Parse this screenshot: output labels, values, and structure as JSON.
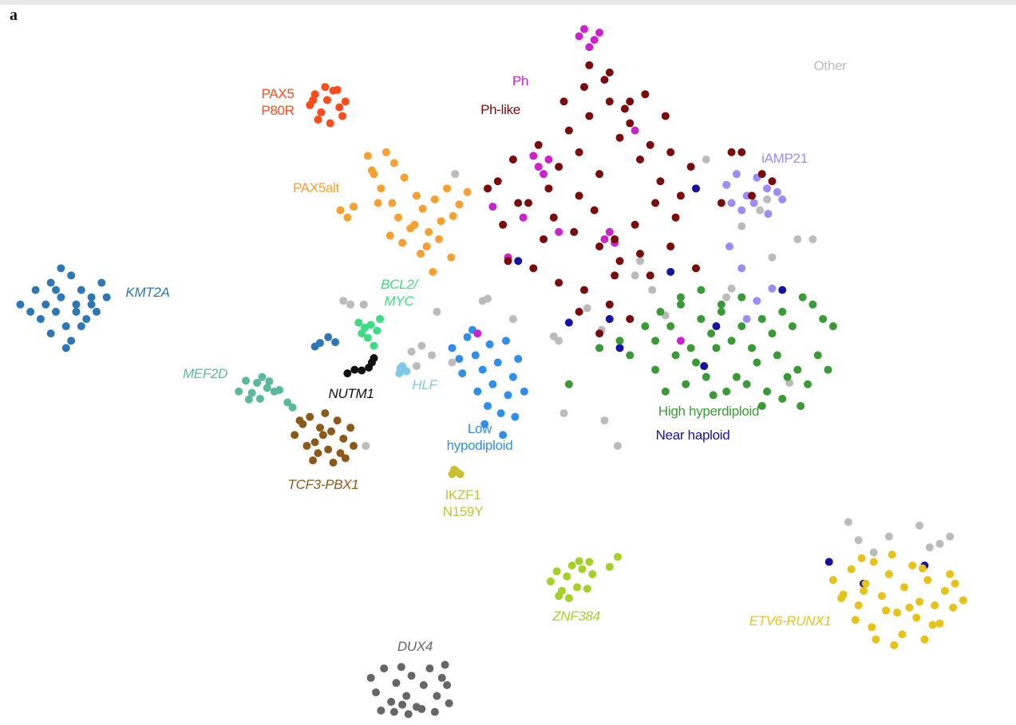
{
  "chart_data": {
    "type": "scatter",
    "panel_label": "a",
    "xlim": [
      0,
      100
    ],
    "ylim": [
      0,
      100
    ],
    "series": [
      {
        "name": "KMT2A",
        "color": "#2f77b4",
        "x": [
          2,
          3.5,
          4,
          5,
          5.5,
          6,
          6.5,
          7,
          7.5,
          8,
          8.5,
          9,
          9.5,
          10,
          3,
          4.5,
          5,
          6,
          7,
          8,
          9,
          6.5,
          5.5,
          7.5,
          10.5,
          31.5,
          32.3,
          31,
          33
        ],
        "y": [
          58,
          60,
          56,
          61,
          57,
          59,
          55,
          62,
          58,
          60,
          56,
          59,
          57,
          61,
          57,
          58,
          54,
          63,
          53,
          55,
          58,
          52,
          60,
          57,
          59,
          52.7,
          53.5,
          52.2,
          52.8
        ]
      },
      {
        "name": "MEF2D",
        "color": "#5bb89a",
        "x": [
          23.5,
          24.2,
          24.8,
          25.3,
          25.8,
          26.3,
          27,
          24.5,
          25.6,
          26.5,
          27.5,
          28.3,
          28.8
        ],
        "y": [
          46,
          47.5,
          45.8,
          47.2,
          48,
          46.5,
          46,
          44.9,
          45,
          47.4,
          46.2,
          44.5,
          43.8
        ]
      },
      {
        "name": "TCF3-PBX1",
        "color": "#8b5a1a",
        "x": [
          29,
          29.8,
          30.5,
          31,
          31.5,
          32,
          32.6,
          33.2,
          33.8,
          34.5,
          30.2,
          31.3,
          32.3,
          33.5,
          34.8,
          29.5,
          30.8,
          32.8,
          34,
          31.8
        ],
        "y": [
          40,
          41.5,
          42.5,
          39,
          41,
          43,
          40.5,
          42,
          39.5,
          41,
          38.5,
          37.5,
          38,
          37.5,
          38.5,
          42,
          36.5,
          36.2,
          36.8,
          40
        ]
      },
      {
        "name": "DUX4",
        "color": "#666666",
        "x": [
          36.5,
          37,
          37.8,
          38.5,
          39,
          39.5,
          40,
          40.5,
          41,
          41.7,
          42.3,
          43,
          43.5,
          44.2,
          37.5,
          38.8,
          40.2,
          41.5,
          42.8,
          44,
          39.6,
          43.8
        ],
        "y": [
          6.5,
          4.5,
          7.8,
          3.2,
          5.8,
          8,
          4,
          6.8,
          2.5,
          5.5,
          7.8,
          4,
          6.5,
          3,
          2,
          1.8,
          1.5,
          2.2,
          1.8,
          5.5,
          2.8,
          8.3
        ]
      },
      {
        "name": "ZNF384",
        "color": "#a3d12a",
        "x": [
          54.2,
          54.8,
          55.3,
          55.8,
          56.3,
          56.8,
          57.3,
          57.8,
          58.3,
          55,
          56,
          57,
          58,
          60,
          60.8
        ],
        "y": [
          19.8,
          21.2,
          18.5,
          20.5,
          22,
          19,
          21.5,
          18.8,
          20.8,
          17.8,
          17.5,
          22.6,
          22.5,
          21.8,
          23.2
        ]
      },
      {
        "name": "ETV6-RUNX1",
        "color": "#e6c21a",
        "x": [
          82,
          83,
          83.8,
          84.5,
          85.2,
          86,
          86.8,
          87.5,
          88.3,
          89,
          89.8,
          90.5,
          91.3,
          92,
          93,
          94,
          94.8,
          82.8,
          84.2,
          85.8,
          87.2,
          88.8,
          90.2,
          91.8,
          93.5,
          86.2,
          88,
          89.5,
          91,
          92.5,
          85,
          84.8,
          87.8,
          90.8,
          93.8
        ],
        "y": [
          20,
          18,
          21.5,
          16.5,
          19.5,
          22.5,
          17.8,
          20.8,
          15.5,
          19,
          22,
          17,
          20,
          16.5,
          18.5,
          19.5,
          17.2,
          17.5,
          14.5,
          13.5,
          15.8,
          12.5,
          14.8,
          13.8,
          20.8,
          11.8,
          11,
          16.2,
          11.8,
          14,
          18.5,
          23,
          23.5,
          21.6,
          16.2
        ]
      },
      {
        "name": "PAX5 P80R",
        "color": "#ff4a1a",
        "x": [
          30.5,
          31,
          31.6,
          32.2,
          32.8,
          33.4,
          34,
          31.3,
          32.5,
          33.7,
          30.8,
          32,
          33.2
        ],
        "y": [
          85.5,
          87,
          84.5,
          86.2,
          87.5,
          85.2,
          86,
          83.5,
          83,
          84,
          86.2,
          88,
          87.6
        ]
      },
      {
        "name": "PAX5alt",
        "color": "#f5a030",
        "x": [
          33.5,
          34.2,
          34.8,
          36.2,
          36.8,
          37.5,
          38,
          38.6,
          39.2,
          39.8,
          40.4,
          41,
          41.6,
          42.2,
          42.8,
          43.4,
          44,
          44.6,
          45.2,
          46,
          37.2,
          38.4,
          39.6,
          40.8,
          42,
          43.2,
          44.4,
          41.4,
          42.6,
          36.6,
          38.8
        ],
        "y": [
          71,
          70,
          71.5,
          78.5,
          76,
          74,
          79,
          72,
          70,
          75.5,
          68.5,
          73,
          71.2,
          68,
          72.5,
          69.5,
          74,
          70.2,
          71.8,
          73.5,
          72,
          67.5,
          66.5,
          69,
          66,
          67,
          64.5,
          65,
          62.5,
          76.5,
          77.5
        ]
      },
      {
        "name": "Ph-like",
        "color": "#7a0c0c",
        "x": [
          49,
          50.5,
          52,
          53,
          54,
          55,
          56,
          57,
          58,
          59,
          60,
          61,
          62,
          63,
          64,
          65,
          66,
          67,
          68,
          54.5,
          56.5,
          58.5,
          60.5,
          62.5,
          64.5,
          66.5,
          55.5,
          57.5,
          59.5,
          61.5,
          63.5,
          65.5,
          58,
          60,
          62,
          57,
          59,
          61,
          63,
          53.5,
          51,
          48,
          49.5,
          64,
          66,
          68.5,
          71,
          72,
          74,
          76,
          73,
          75,
          50,
          52.5,
          55,
          57.5,
          60,
          62,
          57,
          59,
          60.5
        ],
        "y": [
          75,
          78,
          72,
          80,
          74,
          77,
          82,
          79,
          84,
          76,
          86,
          81,
          83,
          78,
          80,
          75,
          79,
          73,
          77,
          70,
          68,
          71,
          67,
          69,
          72,
          70,
          86,
          88,
          89,
          85,
          87,
          84,
          91,
          90,
          86,
          73,
          66,
          64,
          65,
          67,
          72,
          74,
          69,
          62,
          66,
          63,
          72,
          79,
          73,
          75,
          79,
          76,
          64,
          63,
          61,
          60,
          58,
          56,
          57,
          54,
          62
        ]
      },
      {
        "name": "Ph",
        "color": "#cc22cc",
        "x": [
          57,
          57.5,
          58,
          58.5,
          59,
          52.5,
          53,
          53.5,
          54,
          59.5,
          60,
          60.5,
          48.5,
          55,
          50,
          51.5,
          62.5,
          67,
          47
        ],
        "y": [
          95,
          96,
          93.5,
          94.5,
          95.5,
          78.5,
          77,
          76,
          78,
          67,
          68,
          66.5,
          71.5,
          68,
          64.5,
          70,
          82,
          53,
          54
        ]
      },
      {
        "name": "iAMP21",
        "color": "#9c8cf5",
        "x": [
          71.5,
          72.5,
          73.5,
          74.5,
          75.5,
          76.5,
          72,
          73,
          74.2,
          75.6,
          77,
          71.8,
          73,
          74.5,
          76,
          73.5
        ],
        "y": [
          74.5,
          76,
          73,
          75.5,
          74,
          73.5,
          72,
          71,
          72,
          70.5,
          72.5,
          66,
          63,
          58.5,
          60.2,
          56
        ]
      },
      {
        "name": "High hyperdiploid",
        "color": "#3a9a35",
        "x": [
          59,
          61,
          62,
          63.5,
          64.5,
          65,
          66,
          67,
          68,
          69,
          70,
          71,
          72,
          73,
          74,
          75,
          76,
          77,
          78,
          79,
          80,
          81,
          82,
          64.5,
          66.5,
          68.5,
          70.5,
          72.5,
          74.5,
          76.5,
          78.5,
          80.5,
          65.5,
          67.5,
          69.5,
          71.5,
          73.5,
          75.5,
          77.5,
          79.5,
          81.5,
          67,
          69,
          71,
          73,
          75,
          77,
          56,
          70.2,
          78.8
        ],
        "y": [
          52,
          53,
          51,
          55,
          53,
          57,
          55,
          58,
          52,
          56,
          54,
          57,
          53,
          55,
          52,
          56,
          54,
          57,
          55,
          59,
          58,
          56,
          55,
          49,
          51,
          50,
          52,
          48,
          50,
          51,
          49,
          51,
          46,
          47,
          48,
          46,
          47,
          46,
          48,
          47,
          49,
          59,
          60,
          58,
          59,
          44,
          45,
          47,
          45.5,
          44
        ]
      },
      {
        "name": "Near haploid",
        "color": "#1414a0",
        "x": [
          51,
          56,
          60,
          61,
          66,
          68.5,
          69.3,
          70.5,
          77,
          85,
          81.6,
          91
        ],
        "y": [
          64,
          55.5,
          56,
          52,
          62.5,
          74,
          49.5,
          55,
          60,
          19.5,
          22.5,
          22
        ]
      },
      {
        "name": "Low hypodiploid",
        "color": "#2f8fe8",
        "x": [
          44.5,
          45.2,
          46,
          46.8,
          47.5,
          48.2,
          49,
          49.8,
          50.5,
          45.5,
          47,
          48.5,
          50,
          51,
          48,
          49.3,
          50.7,
          47.7,
          49.5,
          51.6,
          46.5
        ],
        "y": [
          52,
          50.5,
          53.5,
          51,
          49,
          52.5,
          50,
          53,
          48,
          48.5,
          46,
          47,
          45.5,
          50.5,
          44,
          43,
          42.5,
          41.5,
          40,
          46,
          54.5
        ]
      },
      {
        "name": "BCL2/MYC",
        "color": "#3ddc84",
        "x": [
          35.3,
          35.9,
          36.5,
          37.1,
          36.2,
          36.8,
          35.6,
          37.4
        ],
        "y": [
          55.5,
          54.8,
          55.2,
          54.4,
          53.4,
          52.3,
          54,
          56
        ]
      },
      {
        "name": "NUTM1",
        "color": "#111111",
        "x": [
          34.2,
          34.9,
          35.6,
          36.3,
          36.6,
          36.8
        ],
        "y": [
          48.5,
          49,
          48.9,
          49.3,
          50,
          50.6
        ]
      },
      {
        "name": "HLF",
        "color": "#7ec8e8",
        "x": [
          39.3,
          39.6,
          40,
          39.4
        ],
        "y": [
          48.5,
          49.5,
          48.8,
          49.2
        ]
      },
      {
        "name": "IKZF1 N159Y",
        "color": "#c8c032",
        "x": [
          44.5,
          44.9,
          45.3,
          44.7
        ],
        "y": [
          34.6,
          35,
          34.6,
          35.2
        ]
      },
      {
        "name": "Other",
        "color": "#bbbbbb",
        "x": [
          33.8,
          34.5,
          44.5,
          41.5,
          40.5,
          44.8,
          47.5,
          55.5,
          50.5,
          43,
          62.5,
          69.5,
          72,
          73,
          74.8,
          75.5,
          78.5,
          59.5,
          60.8,
          63,
          55,
          59.2,
          65.5,
          71.5,
          76,
          80,
          83.5,
          84.5,
          86,
          87.5,
          90.5,
          91.5,
          92.5,
          93.5,
          35.8,
          41,
          42.5,
          48,
          54.5,
          57.8,
          64.2,
          77.7,
          36
        ],
        "y": [
          58.5,
          58,
          50,
          52.3,
          51.5,
          76,
          58.5,
          43,
          56,
          57,
          62,
          78,
          60.2,
          68.8,
          71,
          72.5,
          67,
          42,
          38.5,
          64,
          53,
          54.5,
          56.5,
          59,
          64.5,
          67,
          28,
          25.5,
          23.8,
          26,
          27.5,
          24.5,
          25,
          26,
          58,
          49.5,
          51,
          58.8,
          53.6,
          57.5,
          60,
          47.2,
          38.5
        ]
      }
    ]
  }
}
